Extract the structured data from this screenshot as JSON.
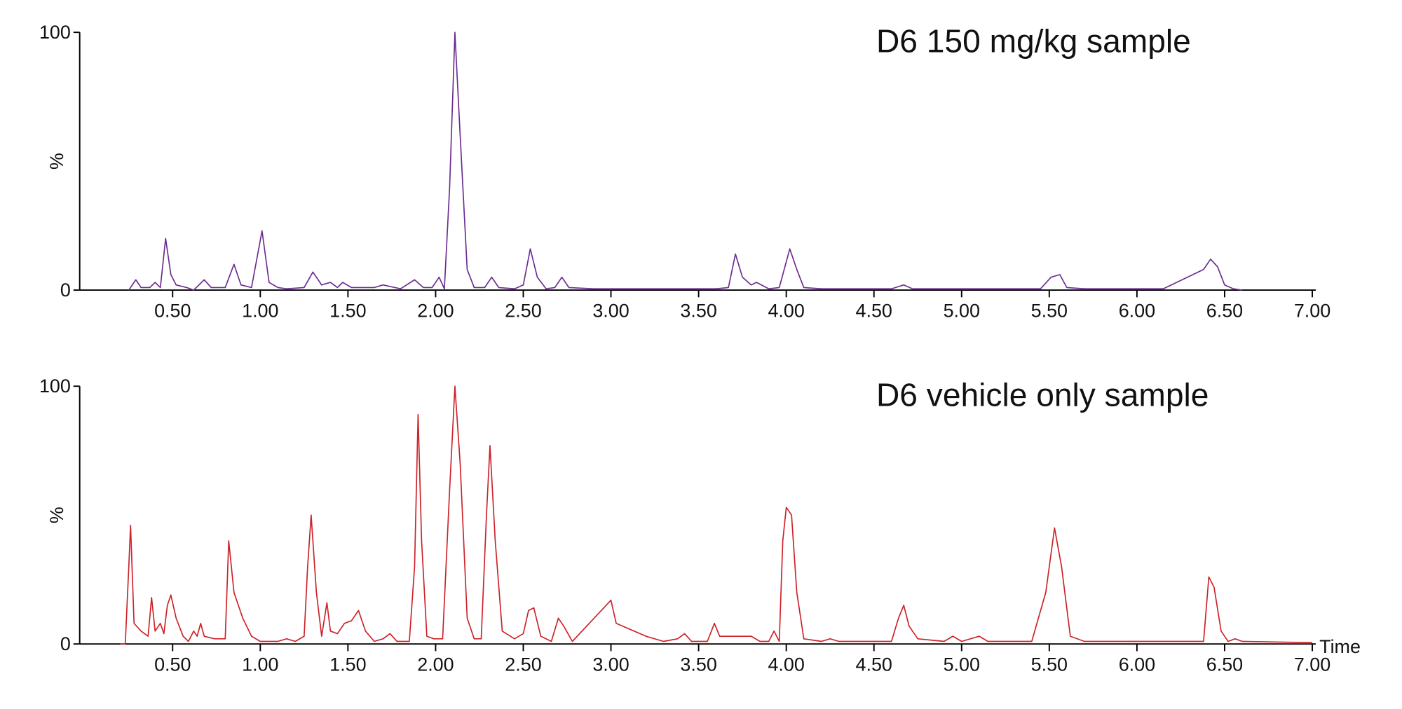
{
  "chart_data": [
    {
      "type": "line",
      "title": "D6 150 mg/kg sample",
      "ylabel": "%",
      "color": "#6b2d8f",
      "xlim": [
        -0.03,
        7.02
      ],
      "ylim": [
        0,
        100
      ],
      "yticks": [
        0,
        100
      ],
      "xticks": [
        {
          "value": 0.5,
          "label": "0.50"
        },
        {
          "value": 1,
          "label": "1.00"
        },
        {
          "value": 1.5,
          "label": "1.50"
        },
        {
          "value": 2,
          "label": "2.00"
        },
        {
          "value": 2.5,
          "label": "2.50"
        },
        {
          "value": 3,
          "label": "3.00"
        },
        {
          "value": 3.5,
          "label": "3.50"
        },
        {
          "value": 4,
          "label": "4.00"
        },
        {
          "value": 4.5,
          "label": "4.50"
        },
        {
          "value": 5,
          "label": "5.00"
        },
        {
          "value": 5.5,
          "label": "5.50"
        },
        {
          "value": 6,
          "label": "6.00"
        },
        {
          "value": 6.5,
          "label": "6.50"
        },
        {
          "value": 7,
          "label": "7.00"
        }
      ],
      "x": [
        0.25,
        0.29,
        0.32,
        0.37,
        0.4,
        0.43,
        0.46,
        0.49,
        0.52,
        0.58,
        0.62,
        0.68,
        0.72,
        0.8,
        0.85,
        0.89,
        0.95,
        1.01,
        1.05,
        1.1,
        1.15,
        1.25,
        1.3,
        1.35,
        1.4,
        1.44,
        1.47,
        1.52,
        1.65,
        1.7,
        1.8,
        1.88,
        1.93,
        1.98,
        2.02,
        2.05,
        2.08,
        2.11,
        2.14,
        2.18,
        2.22,
        2.28,
        2.32,
        2.36,
        2.45,
        2.5,
        2.54,
        2.58,
        2.63,
        2.68,
        2.72,
        2.76,
        2.9,
        3.0,
        3.2,
        3.4,
        3.6,
        3.67,
        3.71,
        3.75,
        3.8,
        3.83,
        3.9,
        3.96,
        4.02,
        4.06,
        4.1,
        4.2,
        4.6,
        4.67,
        4.72,
        5.0,
        5.45,
        5.51,
        5.56,
        5.6,
        5.7,
        6.15,
        6.38,
        6.42,
        6.46,
        6.5,
        6.55,
        6.6
      ],
      "values": [
        0,
        4,
        1,
        1,
        3,
        1,
        20,
        6,
        2,
        1,
        0,
        4,
        1,
        1,
        10,
        2,
        1,
        23,
        3,
        1,
        0.5,
        1,
        7,
        2,
        3,
        1,
        3,
        1,
        1,
        2,
        0.5,
        4,
        1,
        1,
        5,
        0.5,
        40,
        100,
        60,
        8,
        1,
        1,
        5,
        1,
        0.5,
        2,
        16,
        5,
        0.5,
        1,
        5,
        1,
        0.5,
        0.5,
        0.5,
        0.5,
        0.5,
        1,
        14,
        5,
        2,
        3,
        0.5,
        1,
        16,
        8,
        1,
        0.5,
        0.5,
        2,
        0.5,
        0.5,
        0.5,
        5,
        6,
        1,
        0.5,
        0.5,
        8,
        12,
        9,
        2,
        0.5,
        0
      ]
    },
    {
      "type": "line",
      "title": "D6 vehicle only sample",
      "ylabel": "%",
      "xlabel": "Time",
      "color": "#cc2229",
      "xlim": [
        -0.03,
        7.02
      ],
      "ylim": [
        0,
        100
      ],
      "yticks": [
        0,
        100
      ],
      "xticks": [
        {
          "value": 0.5,
          "label": "0.50"
        },
        {
          "value": 1,
          "label": "1.00"
        },
        {
          "value": 1.5,
          "label": "1.50"
        },
        {
          "value": 2,
          "label": "2.00"
        },
        {
          "value": 2.5,
          "label": "2.50"
        },
        {
          "value": 3,
          "label": "3.00"
        },
        {
          "value": 3.5,
          "label": "3.50"
        },
        {
          "value": 4,
          "label": "4.00"
        },
        {
          "value": 4.5,
          "label": "4.50"
        },
        {
          "value": 5,
          "label": "5.00"
        },
        {
          "value": 5.5,
          "label": "5.50"
        },
        {
          "value": 6,
          "label": "6.00"
        },
        {
          "value": 6.5,
          "label": "6.50"
        },
        {
          "value": 7,
          "label": "7.00"
        }
      ],
      "x": [
        0.2,
        0.23,
        0.25,
        0.26,
        0.28,
        0.32,
        0.36,
        0.38,
        0.4,
        0.43,
        0.45,
        0.47,
        0.49,
        0.52,
        0.56,
        0.59,
        0.62,
        0.64,
        0.66,
        0.68,
        0.74,
        0.78,
        0.8,
        0.82,
        0.85,
        0.9,
        0.95,
        1.0,
        1.1,
        1.15,
        1.2,
        1.25,
        1.27,
        1.29,
        1.32,
        1.35,
        1.38,
        1.4,
        1.44,
        1.48,
        1.52,
        1.56,
        1.6,
        1.65,
        1.7,
        1.74,
        1.78,
        1.85,
        1.88,
        1.9,
        1.92,
        1.95,
        1.99,
        2.04,
        2.08,
        2.11,
        2.14,
        2.18,
        2.22,
        2.26,
        2.29,
        2.31,
        2.34,
        2.38,
        2.45,
        2.5,
        2.53,
        2.56,
        2.6,
        2.66,
        2.7,
        2.73,
        2.78,
        3.0,
        3.03,
        3.2,
        3.3,
        3.38,
        3.42,
        3.46,
        3.55,
        3.59,
        3.62,
        3.8,
        3.85,
        3.9,
        3.93,
        3.96,
        3.98,
        4.0,
        4.03,
        4.06,
        4.1,
        4.2,
        4.25,
        4.3,
        4.6,
        4.64,
        4.67,
        4.7,
        4.75,
        4.9,
        4.95,
        5.0,
        5.1,
        5.15,
        5.4,
        5.48,
        5.53,
        5.57,
        5.62,
        5.7,
        6.0,
        6.3,
        6.38,
        6.41,
        6.44,
        6.48,
        6.52,
        6.56,
        6.6,
        7.0
      ],
      "values": [
        0,
        0,
        30,
        46,
        8,
        5,
        3,
        18,
        5,
        8,
        4,
        15,
        19,
        10,
        3,
        1,
        5,
        3,
        8,
        3,
        2,
        2,
        2,
        40,
        20,
        10,
        3,
        1,
        1,
        2,
        1,
        3,
        30,
        50,
        20,
        3,
        16,
        5,
        4,
        8,
        9,
        13,
        5,
        1,
        2,
        4,
        1,
        1,
        30,
        89,
        40,
        3,
        2,
        2,
        60,
        100,
        70,
        10,
        2,
        2,
        50,
        77,
        40,
        5,
        2,
        4,
        13,
        14,
        3,
        1,
        10,
        7,
        1,
        17,
        8,
        3,
        1,
        2,
        4,
        1,
        1,
        8,
        3,
        3,
        1,
        1,
        5,
        1,
        40,
        53,
        50,
        20,
        2,
        1,
        2,
        1,
        1,
        10,
        15,
        7,
        2,
        1,
        3,
        1,
        3,
        1,
        1,
        20,
        45,
        30,
        3,
        1,
        1,
        1,
        1,
        26,
        22,
        5,
        1,
        2,
        1,
        0.5
      ]
    }
  ]
}
